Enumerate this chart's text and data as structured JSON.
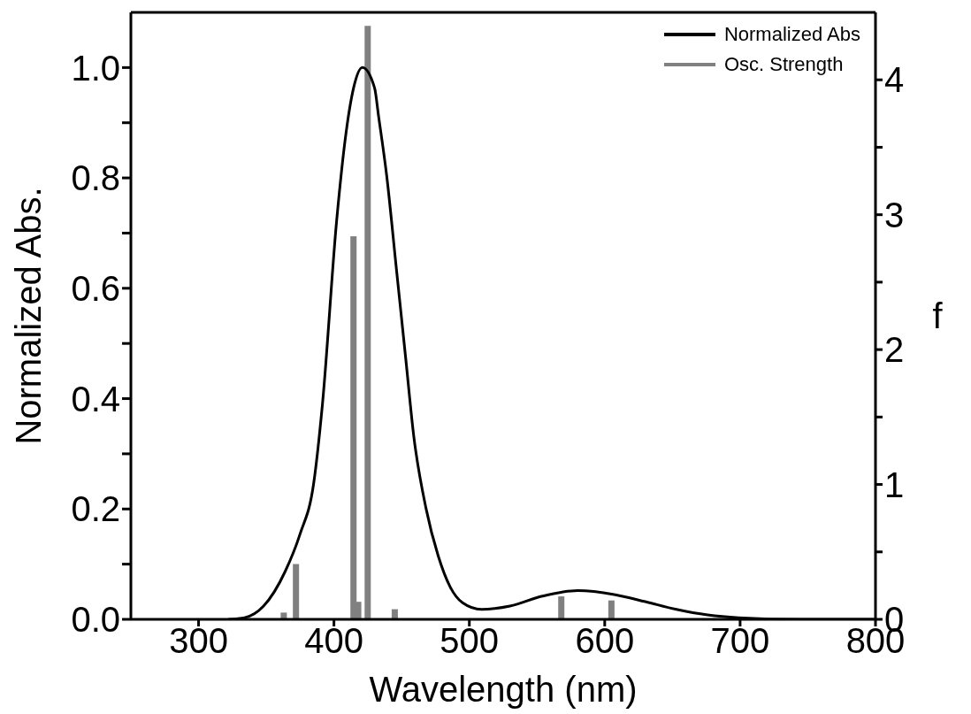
{
  "chart_data": {
    "type": "line",
    "xlabel": "Wavelength (nm)",
    "ylabel": "Normalized Abs.",
    "y2label": "f",
    "xlim": [
      250,
      800
    ],
    "xticks": [
      300,
      400,
      500,
      600,
      700,
      800
    ],
    "ylim": [
      0,
      1.1
    ],
    "yticks": [
      {
        "value": 0,
        "label": "0.0"
      },
      {
        "value": 0.1,
        "label": null
      },
      0.2,
      {
        "value": 0.3,
        "label": null
      },
      0.4,
      {
        "value": 0.5,
        "label": null
      },
      0.6,
      {
        "value": 0.7,
        "label": null
      },
      0.8,
      {
        "value": 0.9,
        "label": null
      },
      {
        "value": 1,
        "label": "1.0"
      }
    ],
    "y2lim": [
      0,
      4.5
    ],
    "y2ticks": [
      0,
      {
        "value": 0.5,
        "label": null
      },
      1,
      {
        "value": 1.5,
        "label": null
      },
      2,
      {
        "value": 2.5,
        "label": null
      },
      3,
      {
        "value": 3.5,
        "label": null
      },
      4
    ],
    "legend": "top right",
    "grid": false,
    "series": [
      {
        "name": "Normalized Abs",
        "color": "#000000",
        "x": [
          322,
          334,
          348,
          364,
          375,
          385,
          391.5,
          402,
          409,
          414.5,
          421,
          430,
          433,
          439,
          446,
          453,
          459,
          468,
          477,
          486,
          495,
          509,
          530,
          554,
          580,
          607,
          630,
          653,
          676,
          699,
          745,
          800
        ],
        "values": [
          0,
          0.003,
          0.024,
          0.087,
          0.155,
          0.246,
          0.39,
          0.723,
          0.883,
          0.963,
          1.0,
          0.963,
          0.911,
          0.803,
          0.638,
          0.473,
          0.331,
          0.201,
          0.115,
          0.058,
          0.03,
          0.018,
          0.024,
          0.042,
          0.052,
          0.045,
          0.032,
          0.018,
          0.008,
          0.003,
          0,
          0
        ]
      },
      {
        "name": "Osc. Strength",
        "type": "bar",
        "axis": "y2",
        "color": "#808080",
        "x": [
          363,
          372,
          414.5,
          418,
          425,
          445,
          568,
          605
        ],
        "values": [
          0.05,
          0.41,
          2.84,
          0.13,
          4.4,
          0.075,
          0.17,
          0.14
        ]
      }
    ]
  }
}
